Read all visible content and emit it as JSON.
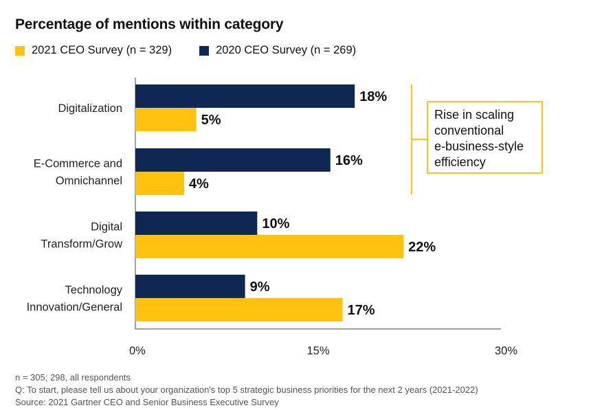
{
  "colors": {
    "series_2021": "#FFC20E",
    "series_2020": "#0E2753",
    "callout_border": "#FFC20E",
    "axis": "#444444"
  },
  "chart_data": {
    "type": "bar",
    "orientation": "horizontal",
    "title": "Percentage of mentions within category",
    "categories": [
      [
        "Digitalization"
      ],
      [
        "E-Commerce and",
        "Omnichannel"
      ],
      [
        "Digital",
        "Transform/Grow"
      ],
      [
        "Technology",
        "Innovation/General"
      ]
    ],
    "series": [
      {
        "name": "2020 CEO Survey (n = 269)",
        "values": [
          18,
          16,
          10,
          9
        ],
        "labels": [
          "18%",
          "16%",
          "10%",
          "9%"
        ]
      },
      {
        "name": "2021 CEO Survey (n = 329)",
        "values": [
          5,
          4,
          22,
          17
        ],
        "labels": [
          "5%",
          "4%",
          "22%",
          "17%"
        ]
      }
    ],
    "xlim": [
      0,
      30
    ],
    "xticks": [
      "0%",
      "15%",
      "30%"
    ],
    "xtick_values": [
      0,
      15,
      30
    ],
    "annotation": [
      "Rise in scaling",
      "conventional",
      "e-business-style",
      "efficiency"
    ]
  },
  "legend": {
    "item_2021": "2021 CEO Survey (n = 329)",
    "item_2020": "2020 CEO Survey (n = 269)"
  },
  "footnotes": {
    "line1": "n = 305; 298, all respondents",
    "line2": "Q: To start, please tell us about your organization's top 5 strategic business priorities for the next 2 years (2021-2022)",
    "line3": "Source: 2021 Gartner CEO and Senior Business Executive Survey"
  }
}
